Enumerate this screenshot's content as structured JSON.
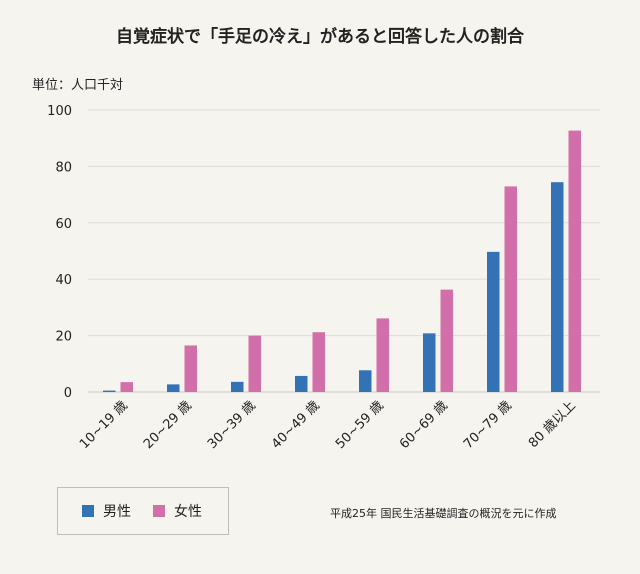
{
  "chart_data": {
    "type": "bar",
    "title": "自覚症状で「手足の冷え」があると回答した人の割合",
    "unit_label": "単位：人口千対",
    "categories": [
      "10~19 歳",
      "20~29 歳",
      "30~39 歳",
      "40~49 歳",
      "50~59 歳",
      "60~69 歳",
      "70~79 歳",
      "80 歳以上"
    ],
    "series": [
      {
        "name": "男性",
        "color": "#3373b5",
        "values": [
          0.5,
          2.7,
          3.6,
          5.7,
          7.7,
          20.8,
          49.7,
          74.4
        ]
      },
      {
        "name": "女性",
        "color": "#d26fa8",
        "values": [
          3.5,
          16.5,
          20.0,
          21.2,
          26.1,
          36.3,
          72.9,
          92.7
        ]
      }
    ],
    "ylim": [
      0,
      100
    ],
    "yticks": [
      0,
      20,
      40,
      60,
      80,
      100
    ],
    "grid": true,
    "legend_position": "bottom-left",
    "source_note": "平成25年 国民生活基礎調査の概況を元に作成"
  }
}
